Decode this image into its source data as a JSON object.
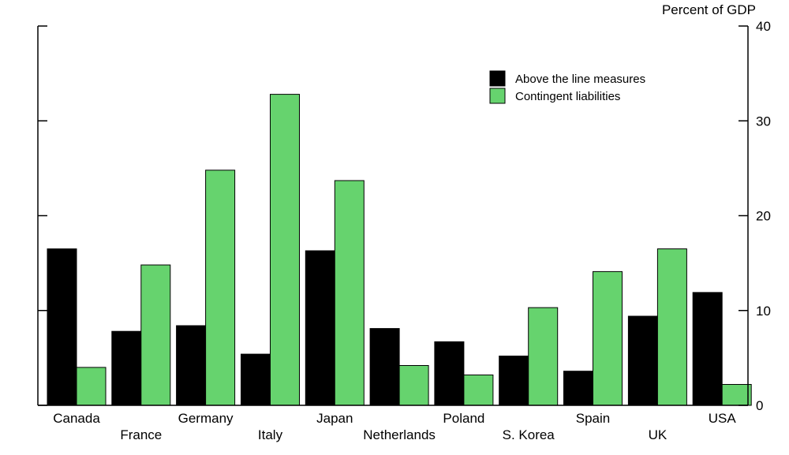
{
  "chart_data": {
    "type": "bar",
    "unit_label": "Percent of GDP",
    "categories": [
      "Canada",
      "France",
      "Germany",
      "Italy",
      "Japan",
      "Netherlands",
      "Poland",
      "S. Korea",
      "Spain",
      "UK",
      "USA"
    ],
    "series": [
      {
        "name": "Above the line measures",
        "color": "#000000",
        "values": [
          16.5,
          7.8,
          8.4,
          5.4,
          16.3,
          8.1,
          6.7,
          5.2,
          3.6,
          9.4,
          11.9
        ]
      },
      {
        "name": "Contingent liabilities",
        "color": "#66d36e",
        "values": [
          4.0,
          14.8,
          24.8,
          32.8,
          23.7,
          4.2,
          3.2,
          10.3,
          14.1,
          16.5,
          2.2
        ]
      }
    ],
    "yaxis_ticks": [
      "0",
      "10",
      "20",
      "30",
      "40"
    ],
    "ylim": [
      0,
      40
    ],
    "yaxis_side": "right",
    "legend_position": "top-right",
    "grid": false
  }
}
